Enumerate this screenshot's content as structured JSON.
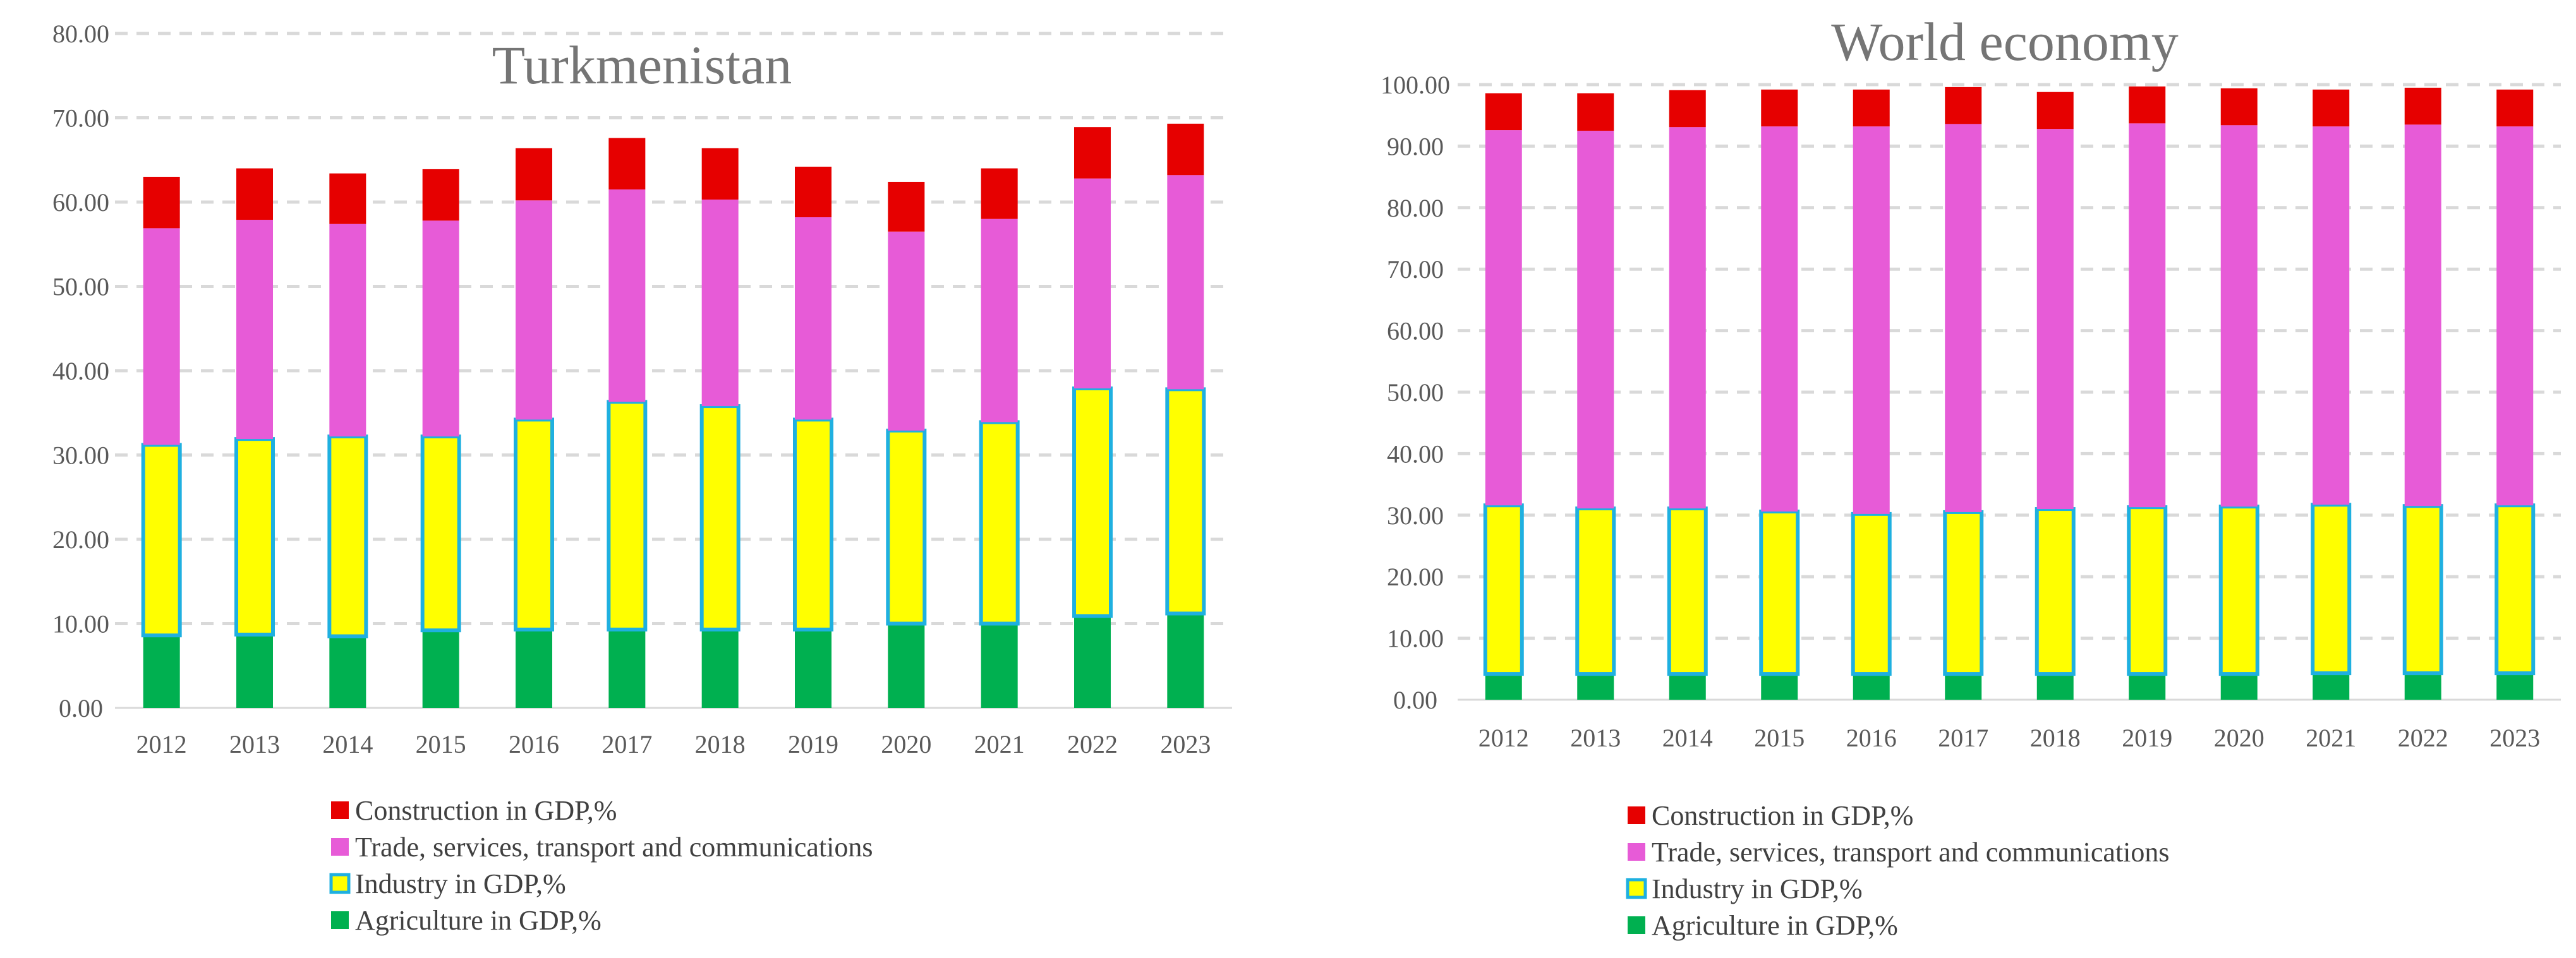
{
  "chart_data": [
    {
      "type": "bar",
      "stacked": true,
      "title": "Turkmenistan",
      "xlabel": "",
      "ylabel": "",
      "ylim": [
        0,
        80
      ],
      "ytick_step": 10,
      "ytick_labels": [
        "0.00",
        "10.00",
        "20.00",
        "30.00",
        "40.00",
        "50.00",
        "60.00",
        "70.00",
        "80.00"
      ],
      "grid": true,
      "legend_position": "bottom",
      "categories": [
        "2012",
        "2013",
        "2014",
        "2015",
        "2016",
        "2017",
        "2018",
        "2019",
        "2020",
        "2021",
        "2022",
        "2023"
      ],
      "series": [
        {
          "name": "Agriculture in GDP,%",
          "color": "#00b050",
          "values": [
            8.6,
            8.7,
            8.5,
            9.2,
            9.3,
            9.3,
            9.3,
            9.3,
            10.0,
            10.0,
            10.9,
            11.2
          ]
        },
        {
          "name": "Industry in GDP,%",
          "color": "#ffff00",
          "border": "#1fb0e0",
          "values": [
            22.6,
            23.2,
            23.7,
            23.0,
            24.9,
            27.0,
            26.5,
            24.9,
            22.9,
            23.9,
            27.0,
            26.6
          ]
        },
        {
          "name": "Trade, services, transport and communications",
          "color": "#e75bd7",
          "values": [
            25.7,
            26.0,
            25.2,
            25.6,
            26.0,
            25.2,
            24.5,
            24.0,
            23.6,
            24.1,
            24.9,
            25.4
          ]
        },
        {
          "name": "Construction in GDP,%",
          "color": "#e60000",
          "values": [
            6.1,
            6.1,
            6.0,
            6.1,
            6.2,
            6.1,
            6.1,
            6.0,
            5.9,
            6.0,
            6.1,
            6.1
          ]
        }
      ]
    },
    {
      "type": "bar",
      "stacked": true,
      "title": "World economy",
      "xlabel": "",
      "ylabel": "",
      "ylim": [
        0,
        100
      ],
      "ytick_step": 10,
      "ytick_labels": [
        "0.00",
        "10.00",
        "20.00",
        "30.00",
        "40.00",
        "50.00",
        "60.00",
        "70.00",
        "80.00",
        "90.00",
        "100.00"
      ],
      "grid": true,
      "legend_position": "bottom",
      "categories": [
        "2012",
        "2013",
        "2014",
        "2015",
        "2016",
        "2017",
        "2018",
        "2019",
        "2020",
        "2021",
        "2022",
        "2023"
      ],
      "series": [
        {
          "name": "Agriculture in GDP,%",
          "color": "#00b050",
          "values": [
            4.2,
            4.2,
            4.2,
            4.2,
            4.2,
            4.2,
            4.2,
            4.2,
            4.2,
            4.3,
            4.3,
            4.3
          ]
        },
        {
          "name": "Industry in GDP,%",
          "color": "#ffff00",
          "border": "#1fb0e0",
          "values": [
            27.4,
            26.9,
            26.9,
            26.4,
            26.0,
            26.3,
            26.8,
            27.1,
            27.2,
            27.4,
            27.2,
            27.3
          ]
        },
        {
          "name": "Trade, services, transport and communications",
          "color": "#e75bd7",
          "values": [
            61.0,
            61.4,
            62.0,
            62.6,
            63.0,
            63.1,
            61.8,
            62.4,
            62.0,
            61.5,
            62.0,
            61.6
          ]
        },
        {
          "name": "Construction in GDP,%",
          "color": "#e60000",
          "values": [
            6.0,
            6.1,
            6.0,
            6.0,
            6.0,
            6.0,
            6.0,
            6.0,
            6.0,
            6.0,
            6.0,
            6.0
          ]
        }
      ]
    }
  ]
}
